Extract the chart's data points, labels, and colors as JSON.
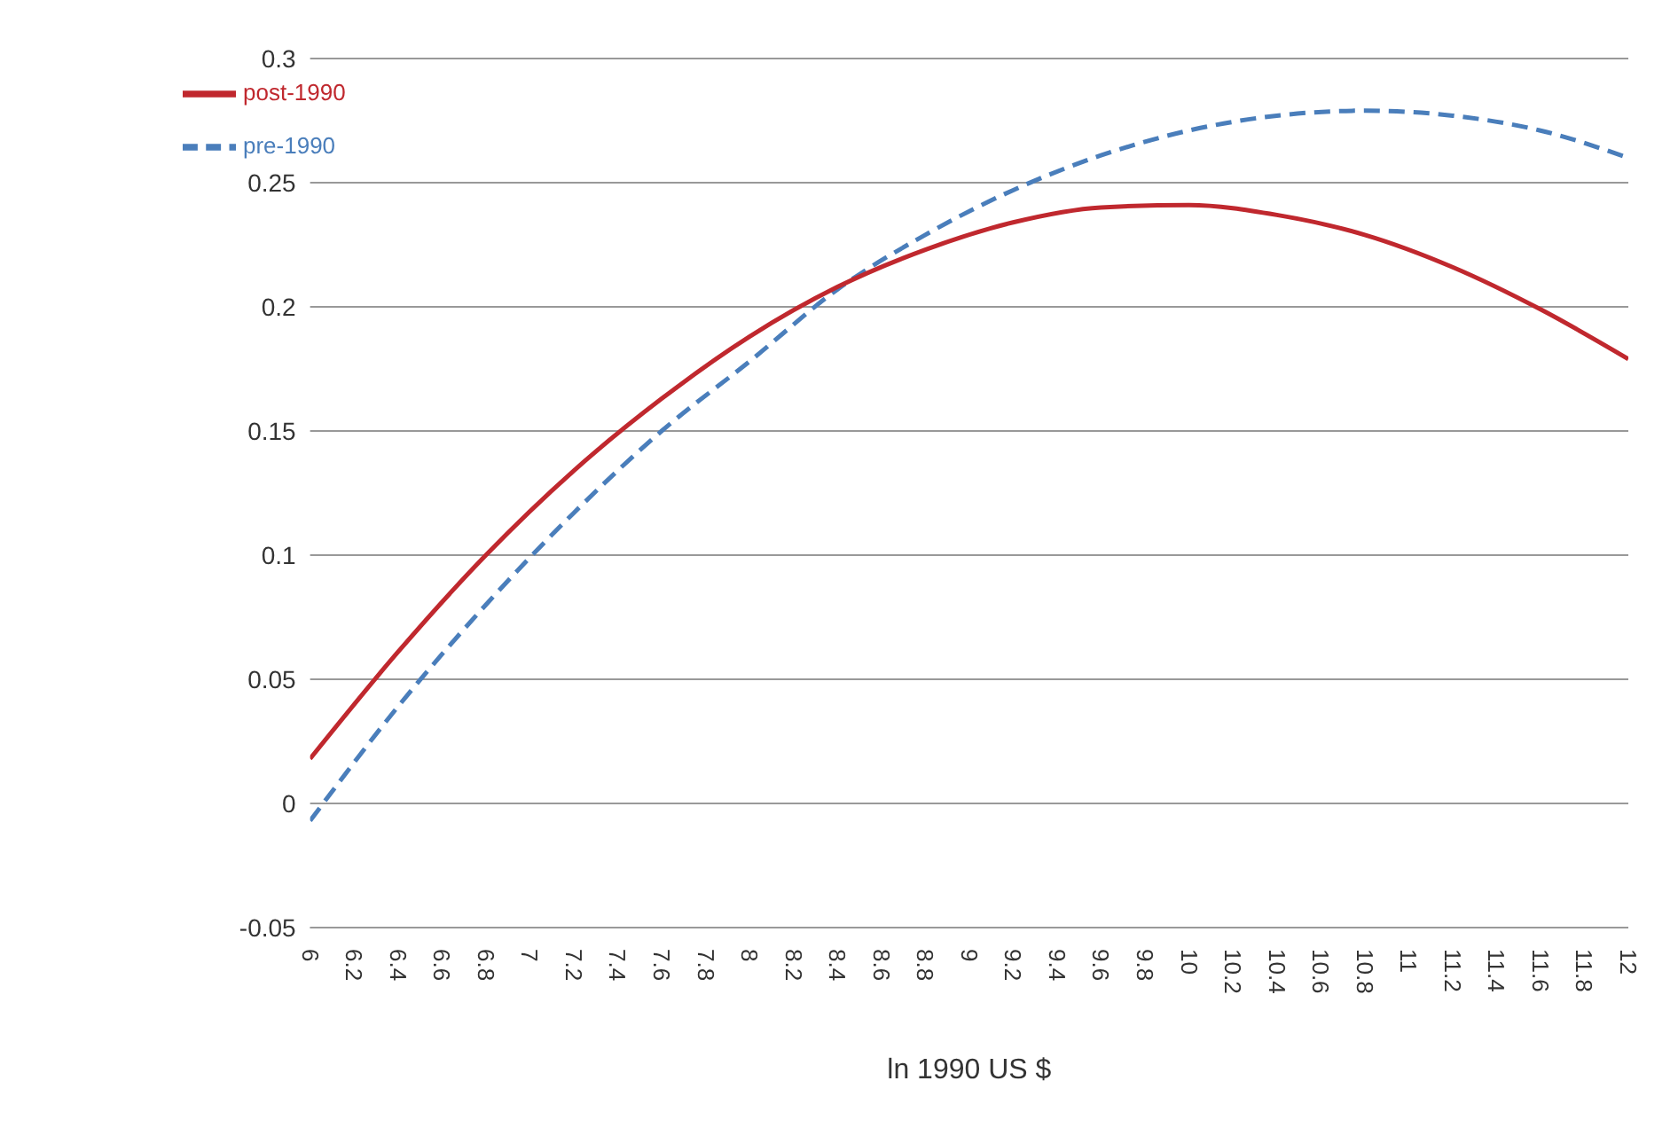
{
  "chart_data": {
    "type": "line",
    "xlabel": "ln 1990 US $",
    "xlim": [
      6,
      12
    ],
    "xticks": [
      6,
      6.2,
      6.4,
      6.6,
      6.8,
      7,
      7.2,
      7.4,
      7.6,
      7.8,
      8,
      8.2,
      8.4,
      8.6,
      8.8,
      9,
      9.2,
      9.4,
      9.6,
      9.8,
      10,
      10.2,
      10.4,
      10.6,
      10.8,
      11,
      11.2,
      11.4,
      11.6,
      11.8,
      12
    ],
    "ylim": [
      -0.05,
      0.3
    ],
    "yticks": [
      -0.05,
      0,
      0.05,
      0.1,
      0.15,
      0.2,
      0.25,
      0.3
    ],
    "grid": "y",
    "legend": "top left",
    "marker": "none",
    "series": [
      {
        "name": "pre-1990",
        "color": "#4a7ebb",
        "line_style": "dashed",
        "x": [
          6,
          6.4,
          6.8,
          7.2,
          7.6,
          8,
          8.4,
          8.8,
          9.2,
          9.6,
          10,
          10.4,
          10.8,
          11.2,
          11.6,
          12
        ],
        "values": [
          -0.007,
          0.039,
          0.08,
          0.117,
          0.15,
          0.178,
          0.207,
          0.229,
          0.247,
          0.261,
          0.271,
          0.277,
          0.279,
          0.277,
          0.271,
          0.26
        ]
      },
      {
        "name": "post-1990",
        "color": "#c0282e",
        "line_style": "solid",
        "x": [
          6,
          6.4,
          6.8,
          7.2,
          7.6,
          8,
          8.4,
          8.8,
          9.2,
          9.6,
          10,
          10.4,
          10.8,
          11.2,
          11.6,
          12
        ],
        "values": [
          0.018,
          0.061,
          0.1,
          0.134,
          0.163,
          0.188,
          0.208,
          0.223,
          0.234,
          0.24,
          0.241,
          0.237,
          0.229,
          0.216,
          0.199,
          0.179
        ]
      }
    ]
  }
}
